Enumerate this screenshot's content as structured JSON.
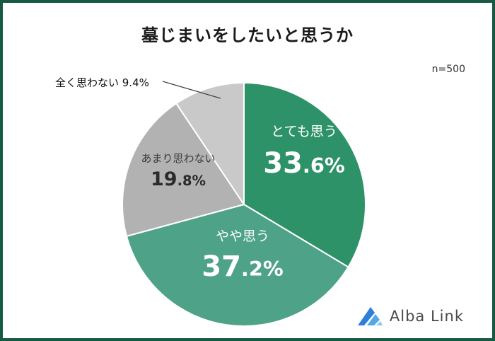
{
  "page": {
    "title": "墓じまいをしたいと思うか",
    "sample_size": "n=500"
  },
  "chart_data": {
    "type": "pie",
    "title": "墓じまいをしたいと思うか",
    "sample_size": "n=500",
    "start_angle_deg": -90,
    "direction": "clockwise",
    "legend_position": "none",
    "slices": [
      {
        "label": "とても思う",
        "value": 33.6,
        "display_int": "33",
        "display_rest": ".6%",
        "color": "#2e9268",
        "label_color": "#ffffff"
      },
      {
        "label": "やや思う",
        "value": 37.2,
        "display_int": "37",
        "display_rest": ".2%",
        "color": "#4da287",
        "label_color": "#ffffff"
      },
      {
        "label": "あまり思わない",
        "value": 19.8,
        "display_int": "19",
        "display_rest": ".8%",
        "color": "#b2b2b2",
        "label_color": "#333333"
      },
      {
        "label": "全く思わない",
        "value": 9.4,
        "callout": "全く思わない 9.4%",
        "color": "#c9c9c9",
        "label_color": "#333333"
      }
    ]
  },
  "logo": {
    "text": "Alba Link",
    "icon_colors": {
      "dark": "#2f7fd8",
      "mid": "#55a8e6",
      "light": "#8cc6ef"
    }
  },
  "colors": {
    "frame_border": "#175a43",
    "background": "#ffffff"
  }
}
